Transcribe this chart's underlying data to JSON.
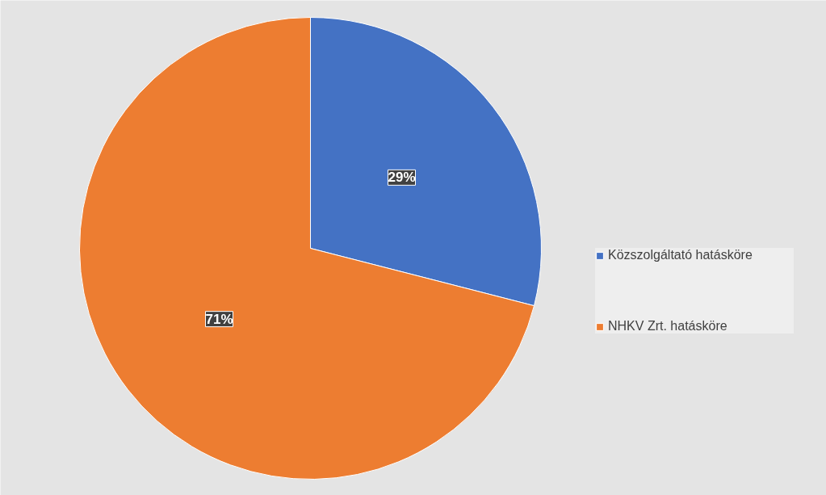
{
  "chart_data": {
    "type": "pie",
    "categories": [
      "Közszolgáltató hatásköre",
      "NHKV Zrt. hatásköre"
    ],
    "values": [
      29,
      71
    ],
    "colors": [
      "#4472c4",
      "#ed7d31"
    ],
    "value_labels": [
      "29%",
      "71%"
    ],
    "legend": "right"
  }
}
